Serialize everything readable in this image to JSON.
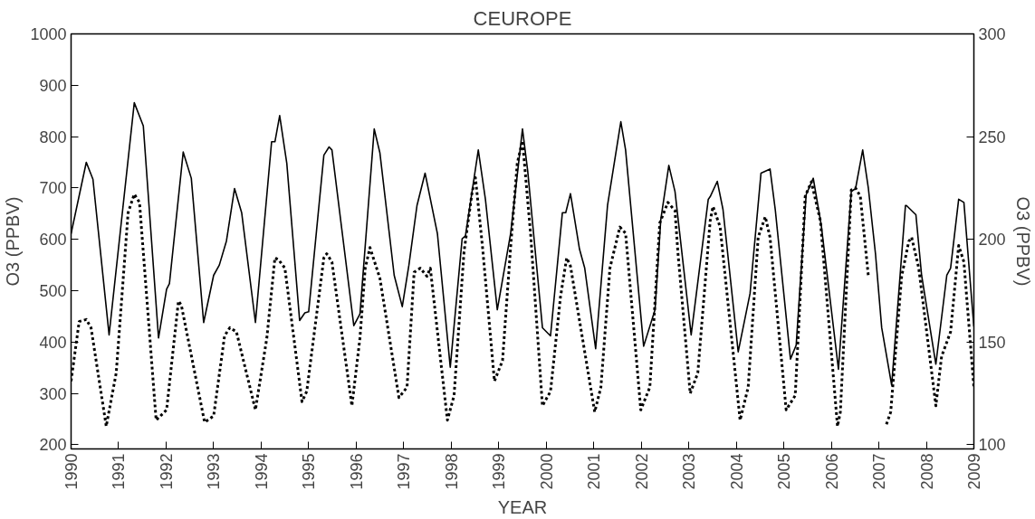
{
  "chart_data": {
    "type": "line",
    "title": "CEUROPE",
    "xlabel": "YEAR",
    "ylabel": "O3 (PPBV)",
    "y2label": "O3 (PPBV)",
    "xlim": [
      1990,
      2009
    ],
    "xticks": [
      1990,
      1991,
      1992,
      1993,
      1994,
      1995,
      1996,
      1997,
      1998,
      1999,
      2000,
      2001,
      2002,
      2003,
      2004,
      2005,
      2006,
      2007,
      2008,
      2009
    ],
    "ylim": [
      192,
      1000
    ],
    "yticks": [
      200,
      300,
      400,
      500,
      600,
      700,
      800,
      900,
      1000
    ],
    "y2lim": [
      98,
      300
    ],
    "y2ticks": [
      100,
      150,
      200,
      250,
      300
    ],
    "grid": false,
    "series": [
      {
        "color": "#000000",
        "line_style": "solid",
        "x": [
          1990.0,
          1990.32,
          1990.46,
          1990.8,
          1991.33,
          1991.52,
          1991.84,
          1992.01,
          1992.07,
          1992.36,
          1992.53,
          1992.79,
          1993.0,
          1993.12,
          1993.27,
          1993.44,
          1993.59,
          1993.88,
          1994.22,
          1994.29,
          1994.39,
          1994.54,
          1994.81,
          1994.92,
          1995.0,
          1995.32,
          1995.43,
          1995.49,
          1995.95,
          1996.08,
          1996.38,
          1996.5,
          1996.8,
          1996.97,
          1997.11,
          1997.28,
          1997.45,
          1997.71,
          1997.98,
          1998.23,
          1998.3,
          1998.57,
          1998.72,
          1998.97,
          1999.25,
          1999.5,
          1999.61,
          1999.92,
          2000.09,
          2000.34,
          2000.41,
          2000.51,
          2000.7,
          2000.81,
          2001.04,
          2001.29,
          2001.57,
          2001.67,
          2002.05,
          2002.29,
          2002.41,
          2002.58,
          2002.71,
          2003.05,
          2003.41,
          2003.45,
          2003.6,
          2003.72,
          2004.04,
          2004.29,
          2004.52,
          2004.71,
          2004.82,
          2005.14,
          2005.26,
          2005.47,
          2005.62,
          2005.79,
          2006.15,
          2006.42,
          2006.51,
          2006.66,
          2006.78,
          2006.93,
          2007.06,
          2007.27,
          2007.56,
          2007.58,
          2007.78,
          2007.9,
          2008.2,
          2008.43,
          2008.51,
          2008.68,
          2008.79,
          2008.96,
          2009.0
        ],
        "values": [
          611,
          750,
          717,
          414,
          866,
          821,
          408,
          503,
          514,
          770,
          719,
          438,
          530,
          550,
          597,
          699,
          652,
          438,
          790,
          790,
          841,
          748,
          442,
          457,
          459,
          764,
          780,
          774,
          432,
          455,
          815,
          768,
          530,
          469,
          550,
          666,
          729,
          611,
          351,
          601,
          607,
          774,
          678,
          463,
          611,
          815,
          733,
          428,
          412,
          652,
          652,
          689,
          581,
          544,
          387,
          666,
          829,
          774,
          392,
          463,
          638,
          744,
          693,
          414,
          678,
          683,
          713,
          658,
          381,
          495,
          729,
          737,
          658,
          367,
          394,
          687,
          719,
          626,
          347,
          693,
          699,
          774,
          699,
          571,
          428,
          316,
          666,
          666,
          648,
          530,
          357,
          530,
          544,
          678,
          672,
          475,
          430
        ]
      },
      {
        "color": "#000000",
        "line_style": "dotted",
        "axis": "y2",
        "x": [
          1990.0,
          1990.17,
          1990.32,
          1990.42,
          1990.74,
          1990.95,
          1991.2,
          1991.33,
          1991.44,
          1991.79,
          1992.01,
          1992.26,
          1992.32,
          1992.81,
          1993.0,
          1993.23,
          1993.34,
          1993.48,
          1993.88,
          1994.12,
          1994.29,
          1994.37,
          1994.5,
          1994.86,
          1994.96,
          1995.32,
          1995.38,
          1995.49,
          1995.91,
          1996.08,
          1996.19,
          1996.29,
          1996.5,
          1996.9,
          1997.07,
          1997.22,
          1997.35,
          1997.49,
          1997.56,
          1997.92,
          1998.06,
          1998.27,
          1998.44,
          1998.51,
          1998.66,
          1998.91,
          1999.08,
          1999.25,
          1999.39,
          1999.5,
          1999.67,
          1999.92,
          2000.09,
          2000.3,
          2000.43,
          2000.51,
          2001.02,
          2001.15,
          2001.34,
          2001.55,
          2001.67,
          2001.99,
          2002.18,
          2002.39,
          2002.56,
          2002.71,
          2002.77,
          2003.03,
          2003.19,
          2003.45,
          2003.51,
          2003.66,
          2004.08,
          2004.25,
          2004.46,
          2004.61,
          2004.71,
          2005.05,
          2005.24,
          2005.45,
          2005.58,
          2005.77,
          2006.13,
          2006.19,
          2006.42,
          2006.51,
          2006.61,
          2006.78,
          2006.85,
          2007.16,
          2007.25,
          2007.48,
          2007.63,
          2007.69,
          2007.84,
          2008.2,
          2008.32,
          2008.51,
          2008.68,
          2008.79,
          2009.0
        ],
        "values": [
          131,
          160,
          161,
          157,
          109,
          135,
          213,
          222,
          218,
          112,
          117,
          170,
          168,
          111,
          114,
          153,
          157,
          155,
          117,
          152,
          191,
          190,
          186,
          121,
          126,
          191,
          193,
          189,
          119,
          152,
          186,
          196,
          181,
          123,
          128,
          184,
          186,
          182,
          186,
          112,
          124,
          194,
          223,
          230,
          196,
          131,
          141,
          196,
          237,
          248,
          203,
          119,
          126,
          172,
          191,
          187,
          116,
          128,
          186,
          206,
          203,
          117,
          128,
          208,
          218,
          214,
          194,
          125,
          135,
          209,
          216,
          206,
          112,
          128,
          201,
          211,
          201,
          117,
          124,
          221,
          228,
          209,
          109,
          116,
          224,
          225,
          221,
          182,
          null,
          110,
          116,
          182,
          199,
          201,
          186,
          119,
          143,
          155,
          197,
          189,
          128
        ]
      }
    ]
  }
}
